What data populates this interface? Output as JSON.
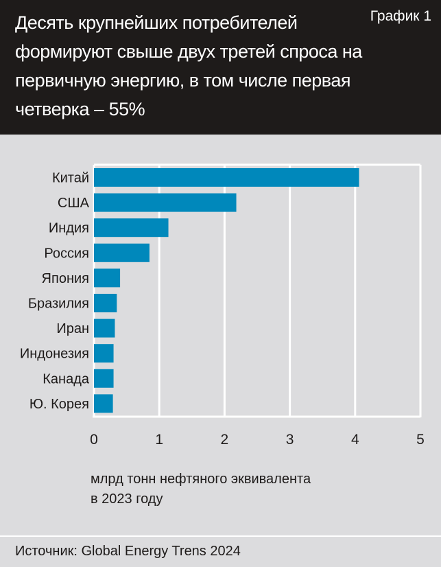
{
  "header": {
    "title": "Десять крупнейших потребителей формируют свыше двух третей спроса на первичную энергию, в том числе первая четверка – 55%",
    "label": "График 1"
  },
  "chart_data": {
    "type": "bar",
    "orientation": "horizontal",
    "categories": [
      "Китай",
      "США",
      "Индия",
      "Россия",
      "Япония",
      "Бразилия",
      "Иран",
      "Индонезия",
      "Канада",
      "Ю. Корея"
    ],
    "values": [
      4.06,
      2.18,
      1.14,
      0.85,
      0.4,
      0.35,
      0.32,
      0.3,
      0.3,
      0.29
    ],
    "xlim": [
      0,
      5
    ],
    "xticks": [
      "0",
      "1",
      "2",
      "3",
      "4",
      "5"
    ],
    "xlabel": "млрд тонн нефтяного эквивалента в 2023 году",
    "grid": true,
    "color": "#0088bb"
  },
  "unit": {
    "line1": "млрд тонн нефтяного эквивалента",
    "line2": "в 2023 году"
  },
  "footer": {
    "source": "Источник: Global Energy Trens 2024"
  }
}
